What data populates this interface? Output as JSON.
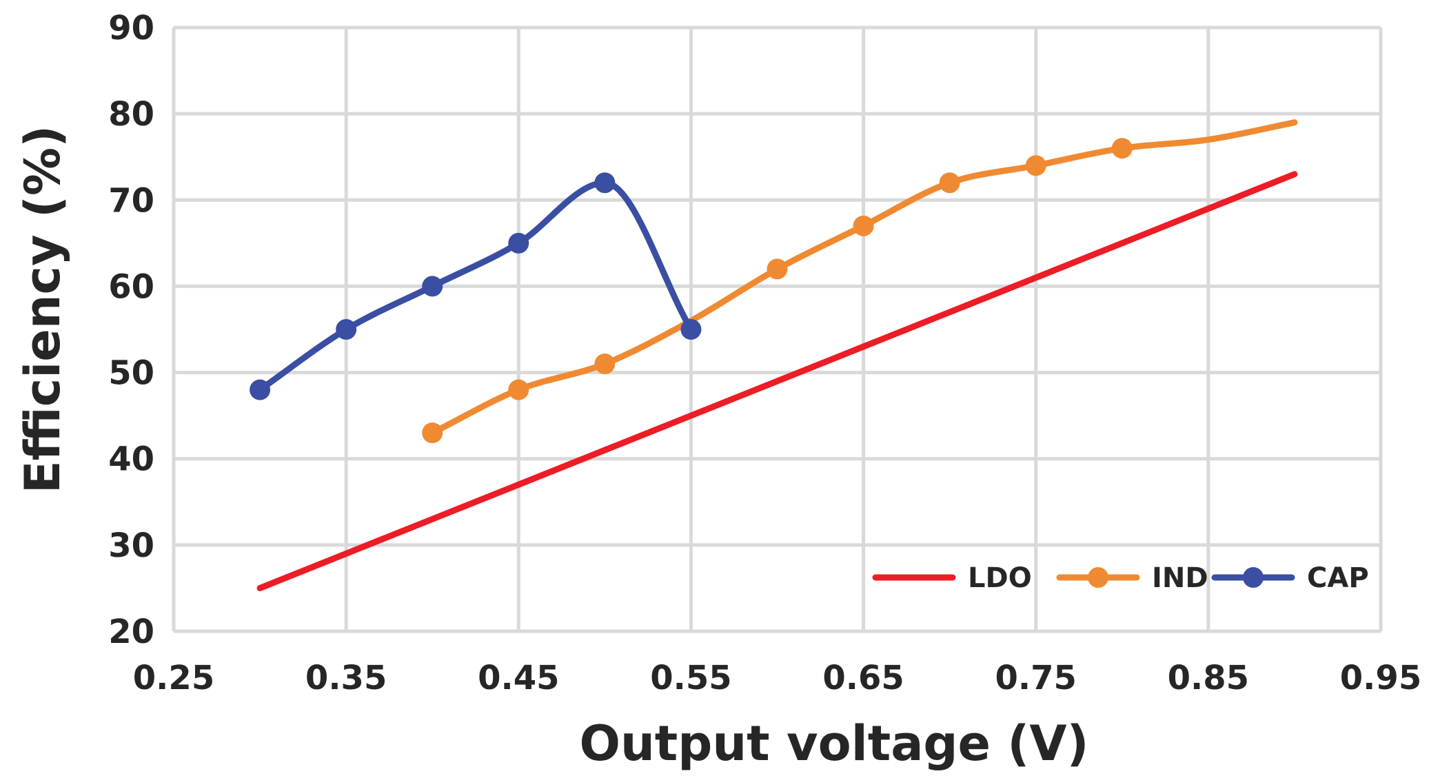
{
  "chart_data": {
    "type": "line",
    "xlabel": "Output voltage (V)",
    "ylabel": "Efficiency (%)",
    "xlim": [
      0.25,
      0.95
    ],
    "ylim": [
      20,
      90
    ],
    "x_ticks": [
      0.25,
      0.35,
      0.45,
      0.55,
      0.65,
      0.75,
      0.85,
      0.95
    ],
    "x_tick_labels": [
      "0.25",
      "0.35",
      "0.45",
      "0.55",
      "0.65",
      "0.75",
      "0.85",
      "0.95"
    ],
    "y_ticks": [
      20,
      30,
      40,
      50,
      60,
      70,
      80,
      90
    ],
    "y_tick_labels": [
      "20",
      "30",
      "40",
      "50",
      "60",
      "70",
      "80",
      "90"
    ],
    "grid": true,
    "legend_position": "bottom-right",
    "series": [
      {
        "name": "LDO",
        "color": "#ee1c25",
        "markers": false,
        "smooth": false,
        "points": [
          [
            0.3,
            25
          ],
          [
            0.9,
            73
          ]
        ]
      },
      {
        "name": "IND",
        "color": "#f08a32",
        "markers": true,
        "smooth": true,
        "marker_x": [
          0.4,
          0.45,
          0.5,
          0.6,
          0.65,
          0.7,
          0.75,
          0.8
        ],
        "points": [
          [
            0.4,
            43
          ],
          [
            0.45,
            48
          ],
          [
            0.5,
            51
          ],
          [
            0.55,
            56
          ],
          [
            0.6,
            62
          ],
          [
            0.65,
            67
          ],
          [
            0.7,
            72
          ],
          [
            0.75,
            74
          ],
          [
            0.8,
            76
          ],
          [
            0.85,
            77
          ],
          [
            0.9,
            79
          ]
        ]
      },
      {
        "name": "CAP",
        "color": "#3a4ea3",
        "markers": true,
        "smooth": true,
        "marker_x": [
          0.3,
          0.35,
          0.4,
          0.45,
          0.5,
          0.55
        ],
        "points": [
          [
            0.3,
            48
          ],
          [
            0.35,
            55
          ],
          [
            0.4,
            60
          ],
          [
            0.45,
            65
          ],
          [
            0.5,
            72
          ],
          [
            0.55,
            55
          ]
        ]
      }
    ]
  }
}
